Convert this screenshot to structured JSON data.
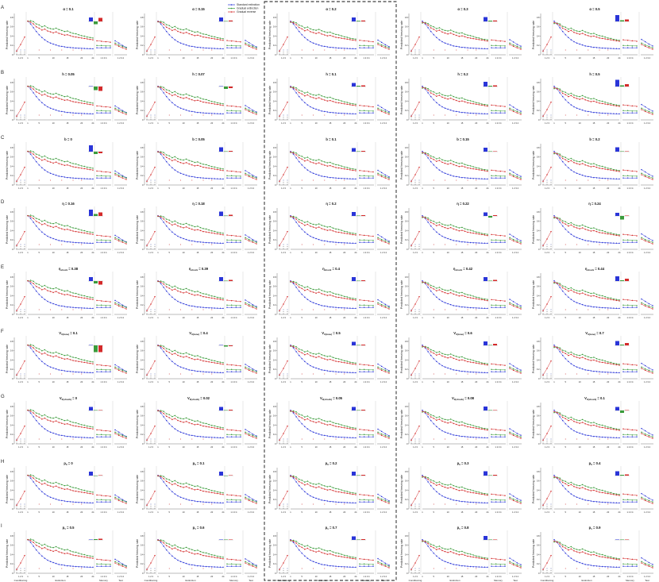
{
  "figure": {
    "y_axis_label": "Predicted freezing rate",
    "phase_labels": [
      "Conditioning",
      "Extinction",
      "Memory",
      "Test"
    ],
    "tick_labels": {
      "conditioning": "1 2 3",
      "extinction": [
        "1",
        "5",
        "10",
        "15",
        "20",
        "24"
      ],
      "memory": "1 2 3 4",
      "test": "1 2 3 4"
    },
    "y_ticks": [
      "0",
      "0.2",
      "0.4",
      "0.6",
      "0.8"
    ],
    "legend": {
      "items": [
        {
          "label": "Standard extinction",
          "color": "#2a35d8"
        },
        {
          "label": "Gradual extinction",
          "color": "#3a9b3a"
        },
        {
          "label": "Gradual reverse",
          "color": "#d42a2a"
        }
      ]
    },
    "highlighted_column": 2
  },
  "chart_data": {
    "type": "line",
    "ylim": [
      0,
      0.85
    ],
    "rows": [
      {
        "letter": "A",
        "titles": [
          "α = 0.1",
          "α = 0.15",
          "α = 0.2",
          "α = 0.3",
          "α = 0.5"
        ]
      },
      {
        "letter": "B",
        "titles": [
          "h = 0.05",
          "h = 0.07",
          "h = 0.1",
          "h = 0.2",
          "h = 0.5"
        ]
      },
      {
        "letter": "C",
        "titles": [
          "b = 0",
          "b = 0.05",
          "b = 0.1",
          "b = 0.15",
          "b = 0.2"
        ]
      },
      {
        "letter": "D",
        "titles": [
          "η = 0.16",
          "η = 0.18",
          "η = 0.2",
          "η = 0.22",
          "η = 0.24"
        ]
      },
      {
        "letter": "E",
        "titles": [
          "η_shock = 0.38",
          "η_shock = 0.39",
          "η_shock = 0.4",
          "η_shock = 0.42",
          "η_shock = 0.44"
        ]
      },
      {
        "letter": "F",
        "titles": [
          "V_0(tone) = 0.1",
          "V_0(tone) = 0.4",
          "V_0(tone) = 0.5",
          "V_0(tone) = 0.6",
          "V_0(tone) = 0.7"
        ]
      },
      {
        "letter": "G",
        "titles": [
          "V_0(shock) = 0",
          "V_0(shock) = 0.02",
          "V_0(shock) = 0.05",
          "V_0(shock) = 0.08",
          "V_0(shock) = 0.1"
        ]
      },
      {
        "letter": "H",
        "titles": [
          "p_0 = 0",
          "p_0 = 0.1",
          "p_0 = 0.2",
          "p_0 = 0.3",
          "p_0 = 0.4"
        ]
      },
      {
        "letter": "I",
        "titles": [
          "p_1 = 0.5",
          "p_1 = 0.6",
          "p_1 = 0.7",
          "p_1 = 0.8",
          "p_1 = 0.9"
        ]
      }
    ],
    "conditioning": [
      0.08,
      0.22,
      0.38
    ],
    "extinction_trials": 24,
    "standard_extinction": [
      0.72,
      0.66,
      0.58,
      0.5,
      0.43,
      0.37,
      0.32,
      0.28,
      0.25,
      0.23,
      0.21,
      0.19,
      0.18,
      0.17,
      0.16,
      0.155,
      0.15,
      0.145,
      0.14,
      0.138,
      0.135,
      0.133,
      0.131,
      0.13
    ],
    "gradual_extinction": [
      0.72,
      0.73,
      0.71,
      0.66,
      0.64,
      0.6,
      0.62,
      0.58,
      0.56,
      0.55,
      0.57,
      0.54,
      0.52,
      0.5,
      0.51,
      0.48,
      0.46,
      0.45,
      0.43,
      0.41,
      0.4,
      0.38,
      0.37,
      0.36
    ],
    "gradual_reverse": [
      0.72,
      0.7,
      0.66,
      0.6,
      0.57,
      0.53,
      0.55,
      0.51,
      0.49,
      0.47,
      0.49,
      0.46,
      0.44,
      0.42,
      0.43,
      0.41,
      0.39,
      0.38,
      0.37,
      0.36,
      0.35,
      0.34,
      0.33,
      0.32
    ],
    "memory": {
      "standard": [
        0.15,
        0.15,
        0.15,
        0.15
      ],
      "gradual": [
        0.2,
        0.2,
        0.19,
        0.19
      ],
      "reverse": [
        0.3,
        0.29,
        0.28,
        0.27
      ]
    },
    "test": {
      "standard": [
        0.3,
        0.25,
        0.2,
        0.16
      ],
      "gradual": [
        0.25,
        0.21,
        0.18,
        0.15
      ],
      "reverse": [
        0.22,
        0.18,
        0.15,
        0.12
      ]
    },
    "inset_bars": [
      [
        [
          0.5,
          -0.35,
          0.45
        ],
        [
          0.5,
          0.05,
          0.12
        ],
        [
          0.5,
          0.08,
          0.12
        ],
        [
          0.55,
          0.1,
          0.12
        ],
        [
          0.8,
          0.15,
          0.25
        ]
      ],
      [
        [
          0.05,
          -0.45,
          -0.55
        ],
        [
          0.05,
          -0.3,
          -0.2
        ],
        [
          0.45,
          0.1,
          0.15
        ],
        [
          0.6,
          0.1,
          0.15
        ],
        [
          0.85,
          0.15,
          0.3
        ]
      ],
      [
        [
          0.8,
          -0.3,
          -0.2
        ],
        [
          0.55,
          0.05,
          0.1
        ],
        [
          0.45,
          0.05,
          0.1
        ],
        [
          0.5,
          0.05,
          0.05
        ],
        [
          0.55,
          0.05,
          0.05
        ]
      ],
      [
        [
          0.8,
          0.25,
          0.45
        ],
        [
          0.55,
          0.05,
          0.15
        ],
        [
          0.5,
          0.05,
          0.1
        ],
        [
          0.45,
          -0.2,
          0.1
        ],
        [
          0.4,
          -0.45,
          0.05
        ]
      ],
      [
        [
          0.5,
          -0.3,
          -0.45
        ],
        [
          0.5,
          0.05,
          0.15
        ],
        [
          0.5,
          0.05,
          0.1
        ],
        [
          0.5,
          0.05,
          0.15
        ],
        [
          0.6,
          0.1,
          0.3
        ]
      ],
      [
        [
          0.05,
          -0.85,
          -0.85
        ],
        [
          0.05,
          -0.15,
          -0.1
        ],
        [
          0.45,
          0.05,
          0.1
        ],
        [
          0.5,
          0.05,
          0.2
        ],
        [
          0.55,
          0.1,
          0.3
        ]
      ],
      [
        [
          0.45,
          0.05,
          0.05
        ],
        [
          0.45,
          0.05,
          0.1
        ],
        [
          0.45,
          0.05,
          0.1
        ],
        [
          0.5,
          0.05,
          0.05
        ],
        [
          0.45,
          -0.3,
          0.05
        ]
      ],
      [
        [
          0.5,
          -0.05,
          0.05
        ],
        [
          0.5,
          -0.05,
          0.05
        ],
        [
          0.5,
          0.05,
          0.1
        ],
        [
          0.55,
          0.05,
          0.1
        ],
        [
          0.55,
          0.1,
          0.15
        ]
      ],
      [
        [
          0.05,
          0.1,
          0.15
        ],
        [
          0.05,
          0.05,
          0.05
        ],
        [
          0.45,
          0.05,
          0.1
        ],
        [
          0.5,
          0.05,
          0.05
        ],
        [
          0.05,
          0.05,
          0.05
        ]
      ]
    ]
  }
}
